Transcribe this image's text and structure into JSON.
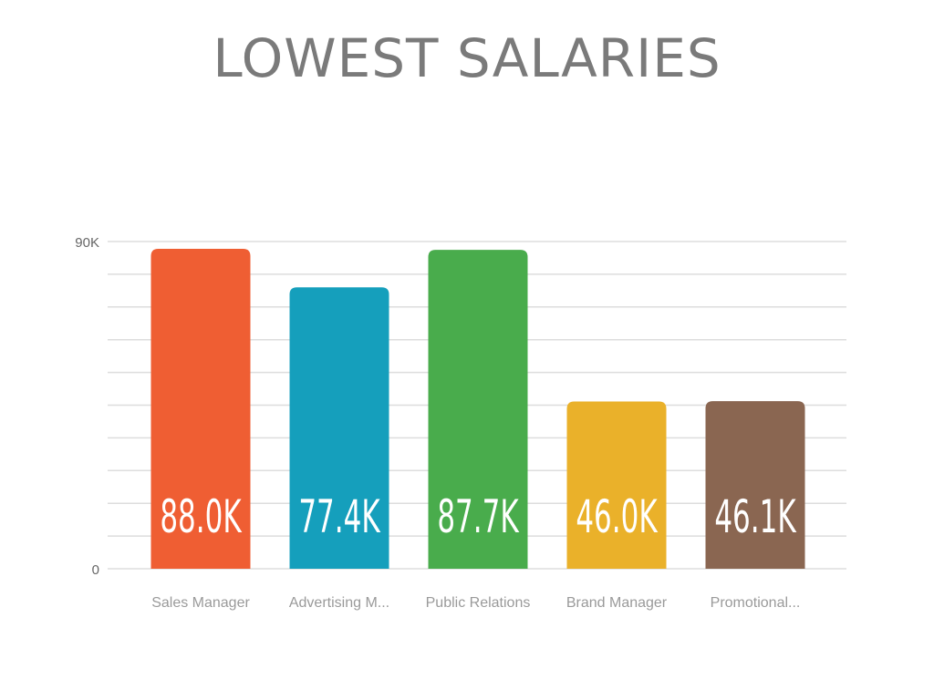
{
  "chart_data": {
    "type": "bar",
    "title": "LOWEST SALARIES",
    "categories": [
      "Sales Manager",
      "Advertising M...",
      "Public Relations",
      "Brand Manager",
      "Promotional..."
    ],
    "values": [
      88.0,
      77.4,
      87.7,
      46.0,
      46.1
    ],
    "value_labels": [
      "88.0K",
      "77.4K",
      "87.7K",
      "46.0K",
      "46.1K"
    ],
    "colors": [
      "#ef5e33",
      "#159fbc",
      "#49ac4c",
      "#eab12a",
      "#8a6651"
    ],
    "ylim": [
      0,
      90
    ],
    "y_tick_labels": [
      {
        "value": 0,
        "label": "0"
      },
      {
        "value": 90,
        "label": "90K"
      }
    ],
    "gridlines": 10,
    "grid": true,
    "legend": "none"
  }
}
